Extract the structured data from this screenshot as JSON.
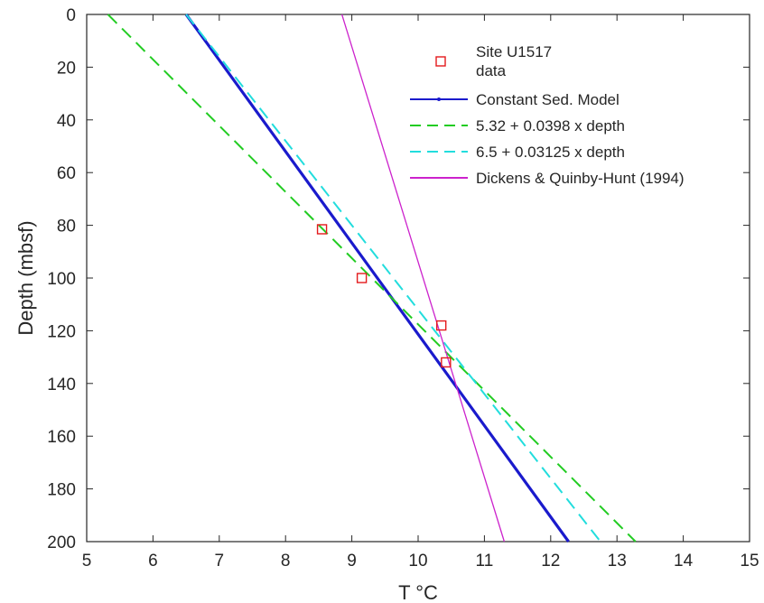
{
  "chart_data": {
    "type": "line",
    "title": "",
    "xlabel": "T °C",
    "ylabel": "Depth (mbsf)",
    "xlim": [
      5,
      15
    ],
    "ylim": [
      0,
      200
    ],
    "y_reversed": true,
    "xticks": [
      5,
      6,
      7,
      8,
      9,
      10,
      11,
      12,
      13,
      14,
      15
    ],
    "yticks": [
      0,
      20,
      40,
      60,
      80,
      100,
      120,
      140,
      160,
      180,
      200
    ],
    "grid": false,
    "legend_position": "top-right",
    "series": [
      {
        "name": "Site U1517 data",
        "legend_lines": [
          "Site U1517",
          "data"
        ],
        "kind": "scatter",
        "marker": "square",
        "color": "#e31a1c",
        "points": [
          [
            8.55,
            81.5
          ],
          [
            9.15,
            100
          ],
          [
            10.35,
            118
          ],
          [
            10.42,
            132
          ]
        ]
      },
      {
        "name": "Constant Sed. Model",
        "kind": "line",
        "style": "solid",
        "color": "#1a1acc",
        "points": [
          [
            6.5,
            0
          ],
          [
            12.27,
            200
          ]
        ]
      },
      {
        "name": "5.32 + 0.0398 x depth",
        "kind": "line",
        "style": "dashed",
        "color": "#22cc22",
        "points": [
          [
            5.32,
            0
          ],
          [
            13.28,
            200
          ]
        ]
      },
      {
        "name": "6.5 + 0.03125 x depth",
        "kind": "line",
        "style": "dashed",
        "color": "#22dddd",
        "points": [
          [
            6.5,
            0
          ],
          [
            12.75,
            200
          ]
        ]
      },
      {
        "name": "Dickens & Quinby-Hunt (1994)",
        "kind": "line",
        "style": "solid",
        "color": "#cc22cc",
        "points": [
          [
            8.85,
            0
          ],
          [
            11.3,
            200
          ]
        ]
      }
    ]
  }
}
